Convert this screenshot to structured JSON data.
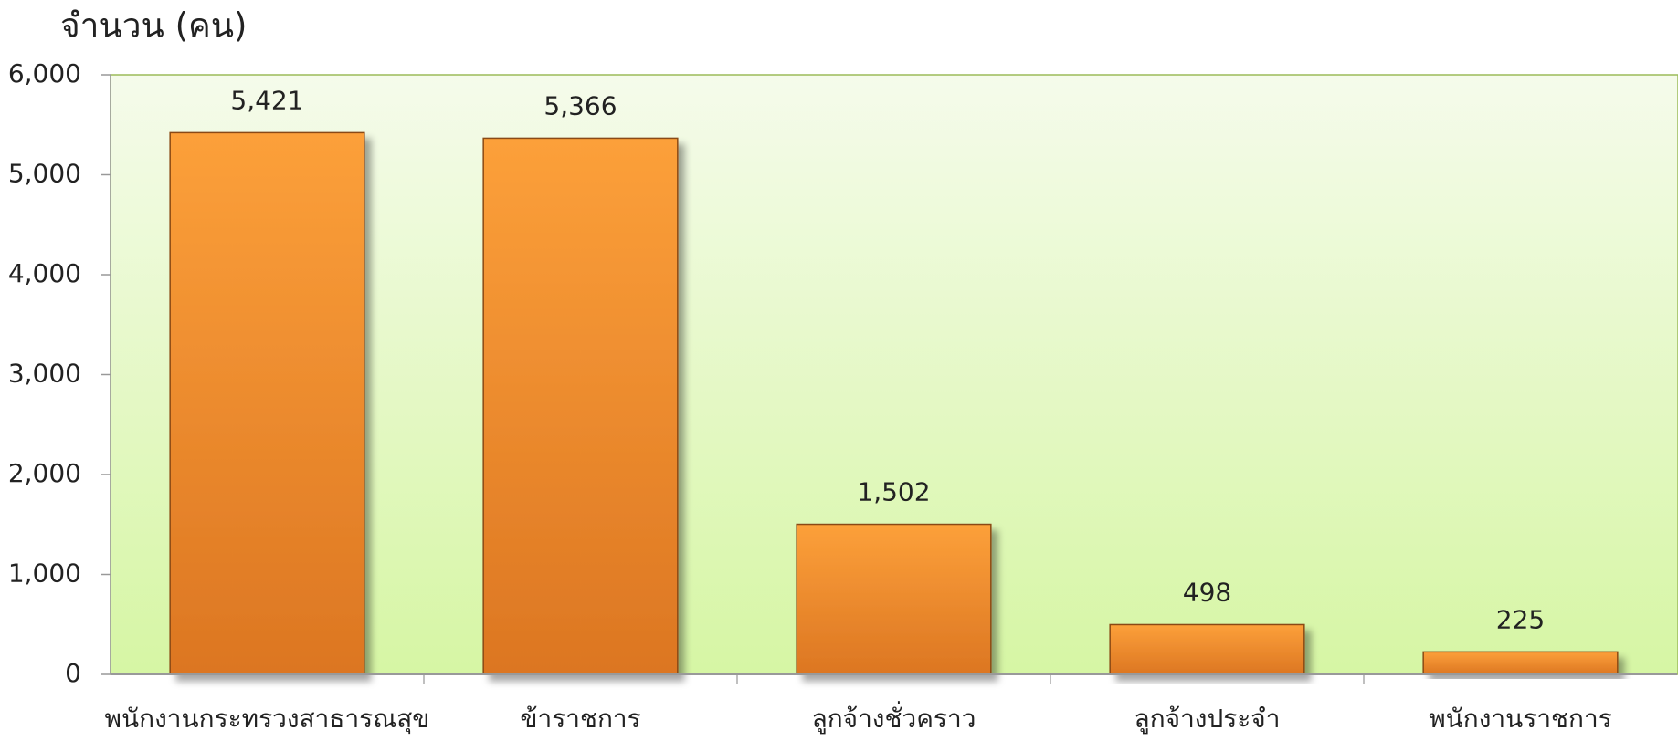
{
  "chart_data": {
    "type": "bar",
    "y_label": "จำนวน (คน)",
    "categories": [
      "พนักงานกระทรวงสาธารณสุข",
      "ข้าราชการ",
      "ลูกจ้างชั่วคราว",
      "ลูกจ้างประจำ",
      "พนักงานราชการ"
    ],
    "values": [
      5421,
      5366,
      1502,
      498,
      225
    ],
    "value_labels": [
      "5,421",
      "5,366",
      "1,502",
      "498",
      "225"
    ],
    "color": "#f7922c",
    "ylim": [
      0,
      6000
    ],
    "yticks": [
      0,
      {
        "value": 1000,
        "label": "1,000"
      },
      {
        "value": 2000,
        "label": "2,000"
      },
      {
        "value": 3000,
        "label": "3,000"
      },
      {
        "value": 4000,
        "label": "4,000"
      },
      {
        "value": 5000,
        "label": "5,000"
      },
      {
        "value": 6000,
        "label": "6,000"
      }
    ]
  }
}
